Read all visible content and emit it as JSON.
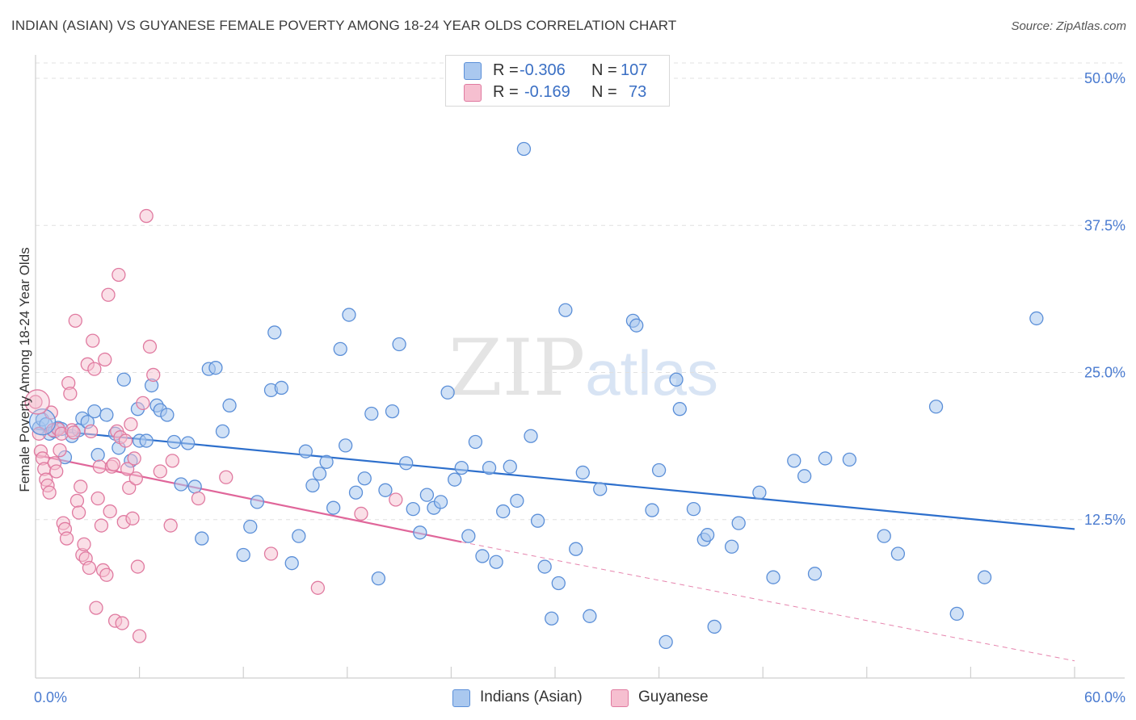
{
  "title": "INDIAN (ASIAN) VS GUYANESE FEMALE POVERTY AMONG 18-24 YEAR OLDS CORRELATION CHART",
  "source": "Source: ZipAtlas.com",
  "watermark": {
    "zip": "ZIP",
    "atlas": "atlas"
  },
  "colors": {
    "blue_fill": "#aac8ef",
    "blue_stroke": "#5b8fd8",
    "blue_line": "#2d6fcc",
    "pink_fill": "#f6bfd0",
    "pink_stroke": "#e07aa0",
    "pink_line": "#e0669a",
    "grid": "#e0e0e0",
    "tick_text": "#4a7bd0"
  },
  "stats": {
    "blue": {
      "r_label": "R =",
      "r_value": "-0.306",
      "n_label": "N =",
      "n_value": "107"
    },
    "pink": {
      "r_label": "R =",
      "r_value": "-0.169",
      "n_label": "N =",
      "n_value": "73"
    }
  },
  "legend": {
    "blue": "Indians (Asian)",
    "pink": "Guyanese"
  },
  "chart_data": {
    "type": "scatter",
    "title": "INDIAN (ASIAN) VS GUYANESE FEMALE POVERTY AMONG 18-24 YEAR OLDS CORRELATION CHART",
    "xlabel": "",
    "ylabel": "Female Poverty Among 18-24 Year Olds",
    "xlim": [
      0,
      60
    ],
    "ylim": [
      0,
      50
    ],
    "x_tick_labels": [
      {
        "value": 0,
        "label": "0.0%"
      },
      {
        "value": 60,
        "label": "60.0%"
      }
    ],
    "y_tick_labels": [
      {
        "value": 12.5,
        "label": "12.5%"
      },
      {
        "value": 25,
        "label": "25.0%"
      },
      {
        "value": 37.5,
        "label": "37.5%"
      },
      {
        "value": 50,
        "label": "50.0%"
      }
    ],
    "grid": true,
    "legend_position": "bottom-center",
    "series": [
      {
        "name": "Indians (Asian)",
        "color": "#5b8fd8",
        "trend": {
          "x0": 0,
          "y0": 20.2,
          "x1": 60,
          "y1": 11.7
        },
        "points": [
          [
            0.2,
            20.3
          ],
          [
            0.4,
            21.0
          ],
          [
            0.6,
            20.6
          ],
          [
            0.8,
            19.8
          ],
          [
            1.1,
            20.0
          ],
          [
            1.3,
            20.3
          ],
          [
            1.5,
            20.2
          ],
          [
            1.7,
            17.8
          ],
          [
            2.1,
            19.6
          ],
          [
            2.5,
            20.1
          ],
          [
            2.7,
            21.1
          ],
          [
            3.0,
            20.8
          ],
          [
            3.4,
            21.7
          ],
          [
            3.6,
            18.0
          ],
          [
            4.1,
            21.4
          ],
          [
            4.6,
            19.8
          ],
          [
            4.8,
            18.6
          ],
          [
            5.1,
            24.4
          ],
          [
            5.5,
            17.5
          ],
          [
            5.9,
            21.9
          ],
          [
            6.0,
            19.2
          ],
          [
            6.4,
            19.2
          ],
          [
            6.7,
            23.9
          ],
          [
            7.0,
            22.2
          ],
          [
            7.2,
            21.8
          ],
          [
            7.6,
            21.4
          ],
          [
            8.0,
            19.1
          ],
          [
            8.4,
            15.5
          ],
          [
            8.8,
            19.0
          ],
          [
            9.2,
            15.3
          ],
          [
            9.6,
            10.9
          ],
          [
            10.0,
            25.3
          ],
          [
            10.4,
            25.4
          ],
          [
            10.8,
            20.0
          ],
          [
            11.2,
            22.2
          ],
          [
            12.0,
            9.5
          ],
          [
            12.4,
            11.9
          ],
          [
            12.8,
            14.0
          ],
          [
            13.6,
            23.5
          ],
          [
            13.8,
            28.4
          ],
          [
            14.2,
            23.7
          ],
          [
            14.8,
            8.8
          ],
          [
            15.2,
            11.1
          ],
          [
            15.6,
            18.3
          ],
          [
            16.0,
            15.4
          ],
          [
            16.4,
            16.4
          ],
          [
            16.8,
            17.4
          ],
          [
            17.2,
            13.5
          ],
          [
            17.6,
            27.0
          ],
          [
            17.9,
            18.8
          ],
          [
            18.1,
            29.9
          ],
          [
            18.5,
            14.8
          ],
          [
            19.0,
            16.0
          ],
          [
            19.4,
            21.5
          ],
          [
            19.8,
            7.5
          ],
          [
            20.2,
            15.0
          ],
          [
            20.6,
            21.7
          ],
          [
            21.0,
            27.4
          ],
          [
            21.4,
            17.3
          ],
          [
            21.8,
            13.4
          ],
          [
            22.2,
            11.4
          ],
          [
            22.6,
            14.6
          ],
          [
            23.0,
            13.5
          ],
          [
            23.4,
            14.0
          ],
          [
            23.8,
            23.3
          ],
          [
            24.2,
            15.9
          ],
          [
            24.6,
            16.9
          ],
          [
            25.0,
            11.1
          ],
          [
            25.4,
            19.1
          ],
          [
            25.8,
            9.4
          ],
          [
            26.2,
            16.9
          ],
          [
            26.6,
            8.9
          ],
          [
            27.0,
            13.2
          ],
          [
            27.4,
            17.0
          ],
          [
            27.8,
            14.1
          ],
          [
            28.2,
            44.0
          ],
          [
            28.6,
            19.6
          ],
          [
            29.0,
            12.4
          ],
          [
            29.4,
            8.5
          ],
          [
            29.8,
            4.1
          ],
          [
            30.2,
            7.1
          ],
          [
            30.6,
            30.3
          ],
          [
            31.2,
            10.0
          ],
          [
            31.6,
            16.5
          ],
          [
            32.0,
            4.3
          ],
          [
            32.6,
            15.1
          ],
          [
            34.5,
            29.4
          ],
          [
            34.7,
            29.0
          ],
          [
            35.6,
            13.3
          ],
          [
            36.0,
            16.7
          ],
          [
            36.4,
            2.1
          ],
          [
            37.0,
            24.4
          ],
          [
            37.2,
            21.9
          ],
          [
            38.0,
            13.4
          ],
          [
            38.6,
            10.8
          ],
          [
            38.8,
            11.2
          ],
          [
            39.2,
            3.4
          ],
          [
            40.2,
            10.2
          ],
          [
            40.6,
            12.2
          ],
          [
            41.8,
            14.8
          ],
          [
            42.6,
            7.6
          ],
          [
            43.8,
            17.5
          ],
          [
            44.4,
            16.2
          ],
          [
            45.0,
            7.9
          ],
          [
            45.6,
            17.7
          ],
          [
            47.0,
            17.6
          ],
          [
            49.0,
            11.1
          ],
          [
            49.8,
            9.6
          ],
          [
            52.0,
            22.1
          ],
          [
            53.2,
            4.5
          ],
          [
            54.8,
            7.6
          ],
          [
            57.8,
            29.6
          ]
        ]
      },
      {
        "name": "Guyanese",
        "color": "#e07aa0",
        "trend": {
          "x0": 0,
          "y0": 18.0,
          "x1": 24.6,
          "y1": 10.6,
          "dash_x1": 60,
          "dash_y1": 0.5
        },
        "points": [
          [
            0.0,
            22.5
          ],
          [
            0.2,
            19.8
          ],
          [
            0.3,
            18.3
          ],
          [
            0.4,
            17.7
          ],
          [
            0.5,
            16.8
          ],
          [
            0.6,
            15.9
          ],
          [
            0.7,
            15.4
          ],
          [
            0.8,
            14.8
          ],
          [
            0.9,
            21.6
          ],
          [
            1.0,
            20.1
          ],
          [
            1.1,
            17.3
          ],
          [
            1.2,
            16.6
          ],
          [
            1.3,
            20.2
          ],
          [
            1.4,
            18.4
          ],
          [
            1.5,
            19.8
          ],
          [
            1.6,
            12.2
          ],
          [
            1.7,
            11.7
          ],
          [
            1.8,
            10.9
          ],
          [
            1.9,
            24.1
          ],
          [
            2.0,
            23.2
          ],
          [
            2.1,
            20.1
          ],
          [
            2.2,
            19.9
          ],
          [
            2.3,
            29.4
          ],
          [
            2.4,
            14.1
          ],
          [
            2.5,
            13.1
          ],
          [
            2.6,
            15.3
          ],
          [
            2.7,
            9.5
          ],
          [
            2.8,
            10.4
          ],
          [
            2.9,
            9.2
          ],
          [
            3.0,
            25.7
          ],
          [
            3.1,
            8.4
          ],
          [
            3.2,
            20.0
          ],
          [
            3.3,
            27.7
          ],
          [
            3.4,
            25.3
          ],
          [
            3.5,
            5.0
          ],
          [
            3.6,
            14.3
          ],
          [
            3.7,
            17.0
          ],
          [
            3.8,
            12.0
          ],
          [
            3.9,
            8.2
          ],
          [
            4.0,
            26.1
          ],
          [
            4.1,
            7.8
          ],
          [
            4.2,
            31.6
          ],
          [
            4.3,
            13.2
          ],
          [
            4.4,
            17.0
          ],
          [
            4.5,
            17.2
          ],
          [
            4.6,
            3.9
          ],
          [
            4.7,
            20.0
          ],
          [
            4.8,
            33.3
          ],
          [
            4.9,
            19.5
          ],
          [
            5.0,
            3.7
          ],
          [
            5.1,
            12.3
          ],
          [
            5.2,
            19.2
          ],
          [
            5.3,
            16.8
          ],
          [
            5.4,
            15.2
          ],
          [
            5.5,
            20.6
          ],
          [
            5.6,
            12.6
          ],
          [
            5.7,
            17.7
          ],
          [
            5.8,
            16.0
          ],
          [
            5.9,
            8.5
          ],
          [
            6.0,
            2.6
          ],
          [
            6.2,
            22.4
          ],
          [
            6.4,
            38.3
          ],
          [
            6.6,
            27.2
          ],
          [
            6.8,
            24.8
          ],
          [
            7.2,
            16.6
          ],
          [
            7.8,
            12.0
          ],
          [
            7.9,
            17.5
          ],
          [
            9.4,
            14.3
          ],
          [
            11.0,
            16.1
          ],
          [
            13.6,
            9.6
          ],
          [
            16.3,
            6.7
          ],
          [
            18.8,
            13.0
          ],
          [
            20.8,
            14.2
          ]
        ]
      }
    ]
  }
}
